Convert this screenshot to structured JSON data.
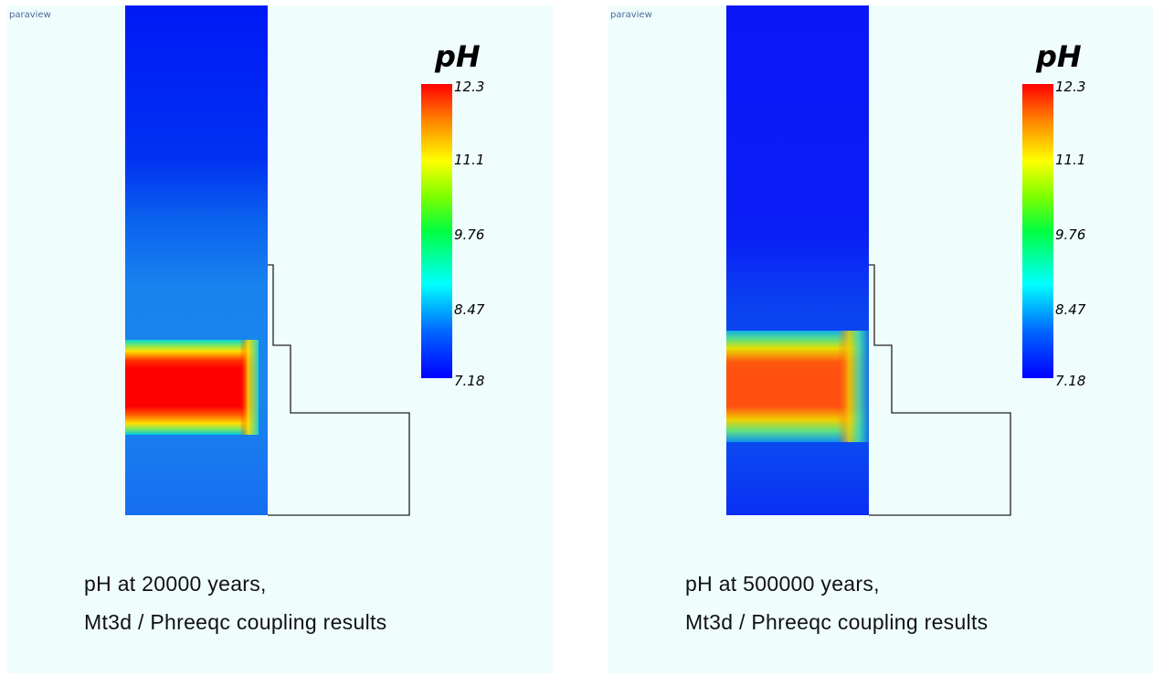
{
  "colors": {
    "background": "#f0fdfd",
    "low_ph": "#0000ff",
    "high_ph": "#ff0000"
  },
  "colorbar": {
    "title": "pH",
    "ticks": [
      "12.3",
      "11.1",
      "9.76",
      "8.47",
      "7.18"
    ],
    "min": 7.18,
    "max": 12.3
  },
  "panels": [
    {
      "brand": "paraview",
      "caption_line1": "pH at 20000 years,",
      "caption_line2": "Mt3d / Phreeqc coupling results"
    },
    {
      "brand": "paraview",
      "caption_line1": "pH at 500000 years,",
      "caption_line2": "Mt3d / Phreeqc coupling results"
    }
  ]
}
